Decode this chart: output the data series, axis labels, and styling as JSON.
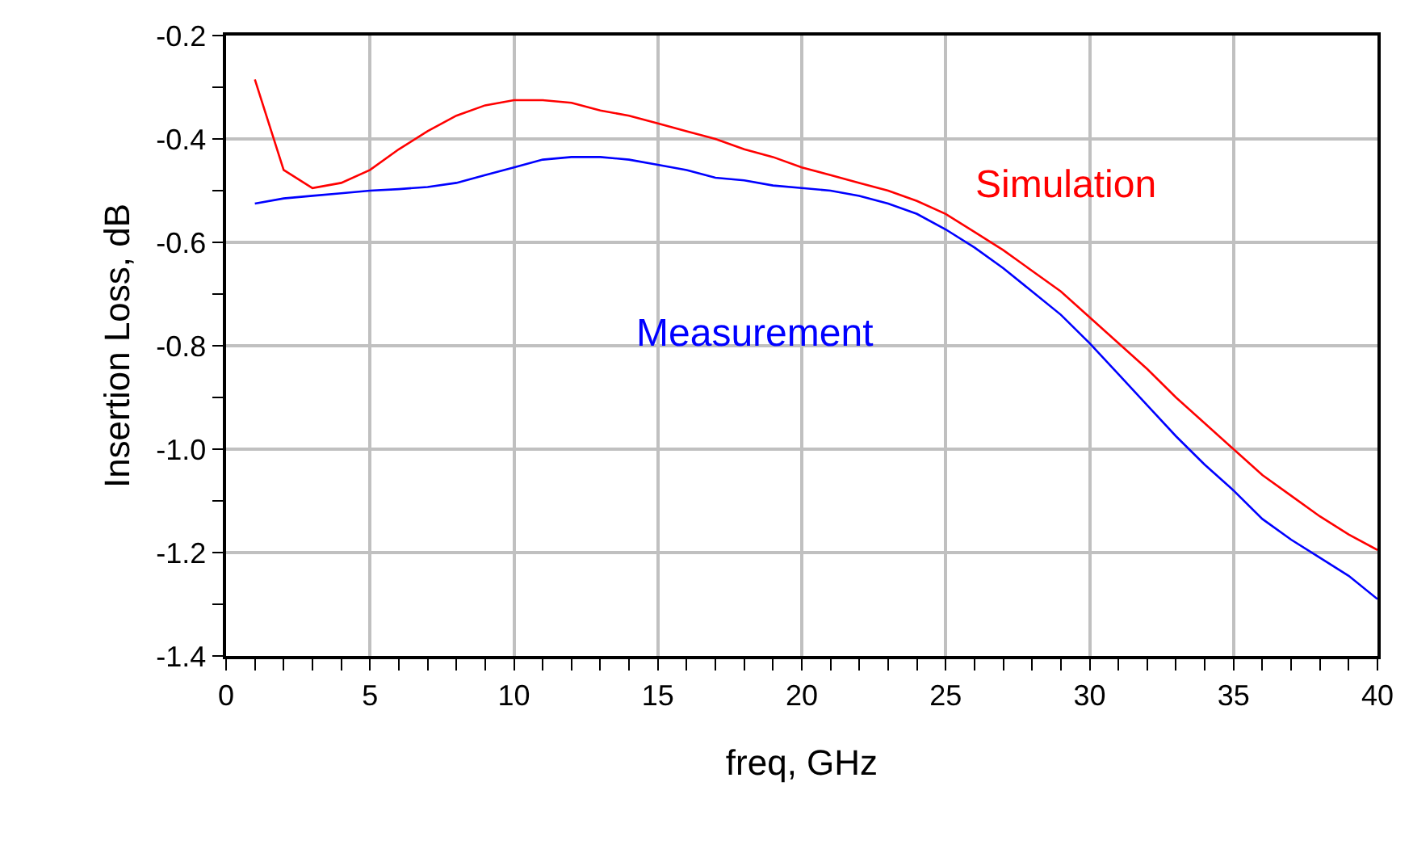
{
  "chart_data": {
    "type": "line",
    "xlabel": "freq, GHz",
    "ylabel": "Insertion Loss, dB",
    "x": [
      1,
      2,
      3,
      4,
      5,
      6,
      7,
      8,
      9,
      10,
      11,
      12,
      13,
      14,
      15,
      16,
      17,
      18,
      19,
      20,
      21,
      22,
      23,
      24,
      25,
      26,
      27,
      28,
      29,
      30,
      31,
      32,
      33,
      34,
      35,
      36,
      37,
      38,
      39,
      40
    ],
    "series": [
      {
        "name": "Simulation",
        "color": "#ff0000",
        "values": [
          -0.285,
          -0.46,
          -0.495,
          -0.485,
          -0.46,
          -0.42,
          -0.385,
          -0.355,
          -0.335,
          -0.325,
          -0.325,
          -0.33,
          -0.345,
          -0.355,
          -0.37,
          -0.385,
          -0.4,
          -0.42,
          -0.435,
          -0.455,
          -0.47,
          -0.485,
          -0.5,
          -0.52,
          -0.545,
          -0.58,
          -0.615,
          -0.655,
          -0.695,
          -0.745,
          -0.795,
          -0.845,
          -0.9,
          -0.95,
          -1.0,
          -1.05,
          -1.09,
          -1.13,
          -1.165,
          -1.195
        ]
      },
      {
        "name": "Measurement",
        "color": "#0000ff",
        "values": [
          -0.525,
          -0.515,
          -0.51,
          -0.505,
          -0.5,
          -0.497,
          -0.493,
          -0.485,
          -0.47,
          -0.455,
          -0.44,
          -0.435,
          -0.435,
          -0.44,
          -0.45,
          -0.46,
          -0.475,
          -0.48,
          -0.49,
          -0.495,
          -0.5,
          -0.51,
          -0.525,
          -0.545,
          -0.575,
          -0.61,
          -0.65,
          -0.695,
          -0.74,
          -0.795,
          -0.855,
          -0.915,
          -0.975,
          -1.03,
          -1.08,
          -1.135,
          -1.175,
          -1.21,
          -1.245,
          -1.29
        ]
      }
    ],
    "xlim": [
      0,
      40
    ],
    "xticks": [
      0,
      5,
      10,
      15,
      20,
      25,
      30,
      35,
      40
    ],
    "ylim": [
      -1.4,
      -0.2
    ],
    "yticks": [
      -1.4,
      -1.2,
      {
        "value": -1.0,
        "label": "-1.0"
      },
      -0.8,
      -0.6,
      -0.4,
      -0.2
    ],
    "grid": true,
    "legend": false,
    "marker": "none",
    "line_style": "solid"
  }
}
